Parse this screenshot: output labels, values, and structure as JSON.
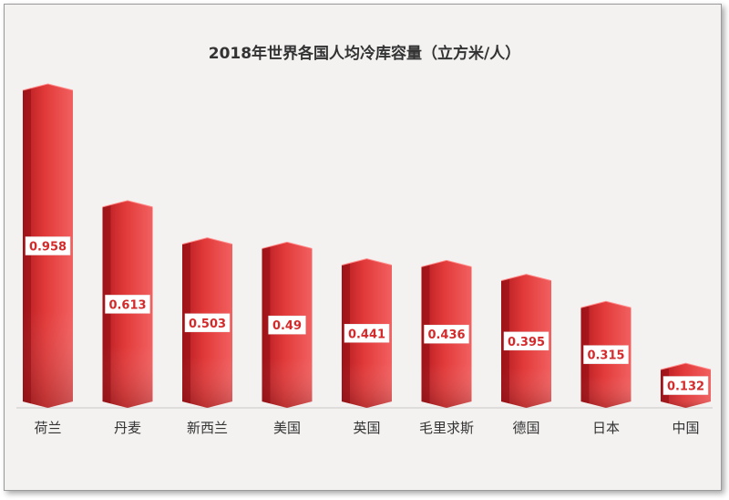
{
  "chart_data": {
    "type": "bar",
    "title": "2018年世界各国人均冷库容量（立方米/人）",
    "categories": [
      "荷兰",
      "丹麦",
      "新西兰",
      "美国",
      "英国",
      "毛里求斯",
      "德国",
      "日本",
      "中国"
    ],
    "values": [
      0.958,
      0.613,
      0.503,
      0.49,
      0.441,
      0.436,
      0.395,
      0.315,
      0.132
    ],
    "value_labels": [
      "0.958",
      "0.613",
      "0.503",
      "0.49",
      "0.441",
      "0.436",
      "0.395",
      "0.315",
      "0.132"
    ],
    "ylim": [
      0,
      1
    ],
    "grid": false,
    "legend": "none",
    "colors": {
      "bar_light": "#f05a5a",
      "bar_mid": "#dc2f2f",
      "bar_dark": "#8e0d13",
      "label_text": "#d32b2b"
    }
  }
}
